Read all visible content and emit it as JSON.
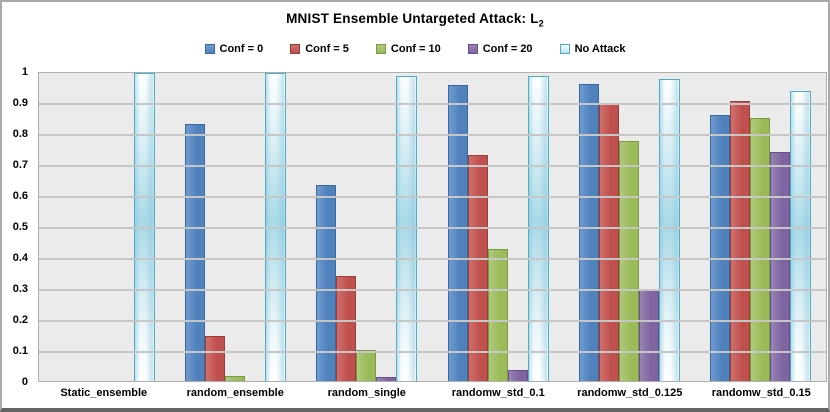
{
  "title": {
    "main": "MNIST Ensemble Untargeted Attack: L",
    "subscript": "2",
    "full": "MNIST Ensemble Untargeted Attack: L2"
  },
  "chart_data": {
    "type": "bar",
    "title": "MNIST Ensemble Untargeted Attack: L2",
    "xlabel": "",
    "ylabel": "",
    "ylim": [
      0,
      1
    ],
    "ytick_step": 0.1,
    "grid": true,
    "legend_position": "top-center",
    "plot_background": "#ebebeb",
    "gridline_color": "#c6c6c6",
    "yticks": [
      "1",
      "0.9",
      "0.8",
      "0.7",
      "0.6",
      "0.5",
      "0.4",
      "0.3",
      "0.2",
      "0.1",
      "0"
    ],
    "categories": [
      "Static_ensemble",
      "random_ensemble",
      "random_single",
      "randomw_std_0.1",
      "randomw_std_0.125",
      "randomw_std_0.15"
    ],
    "series": [
      {
        "name": "Conf = 0",
        "fill": "#4f81bd",
        "fill_light": "#6f9bd0",
        "border": "#39699c",
        "values": [
          0,
          0.835,
          0.635,
          0.96,
          0.965,
          0.865
        ]
      },
      {
        "name": "Conf = 5",
        "fill": "#c0504d",
        "fill_light": "#d0706d",
        "border": "#993d3a",
        "values": [
          0,
          0.145,
          0.34,
          0.735,
          0.9,
          0.91
        ]
      },
      {
        "name": "Conf = 10",
        "fill": "#9bbb59",
        "fill_light": "#b0ca7c",
        "border": "#7a9a40",
        "values": [
          0,
          0.015,
          0.1,
          0.43,
          0.78,
          0.855
        ]
      },
      {
        "name": "Conf = 20",
        "fill": "#8064a2",
        "fill_light": "#9983b4",
        "border": "#655087",
        "values": [
          0,
          0,
          0.012,
          0.035,
          0.295,
          0.745
        ]
      },
      {
        "name": "No Attack",
        "variant": "gradient",
        "fill": "#daeef3",
        "border": "#4bacc6",
        "values": [
          1,
          1,
          0.99,
          0.99,
          0.98,
          0.94
        ]
      }
    ]
  }
}
